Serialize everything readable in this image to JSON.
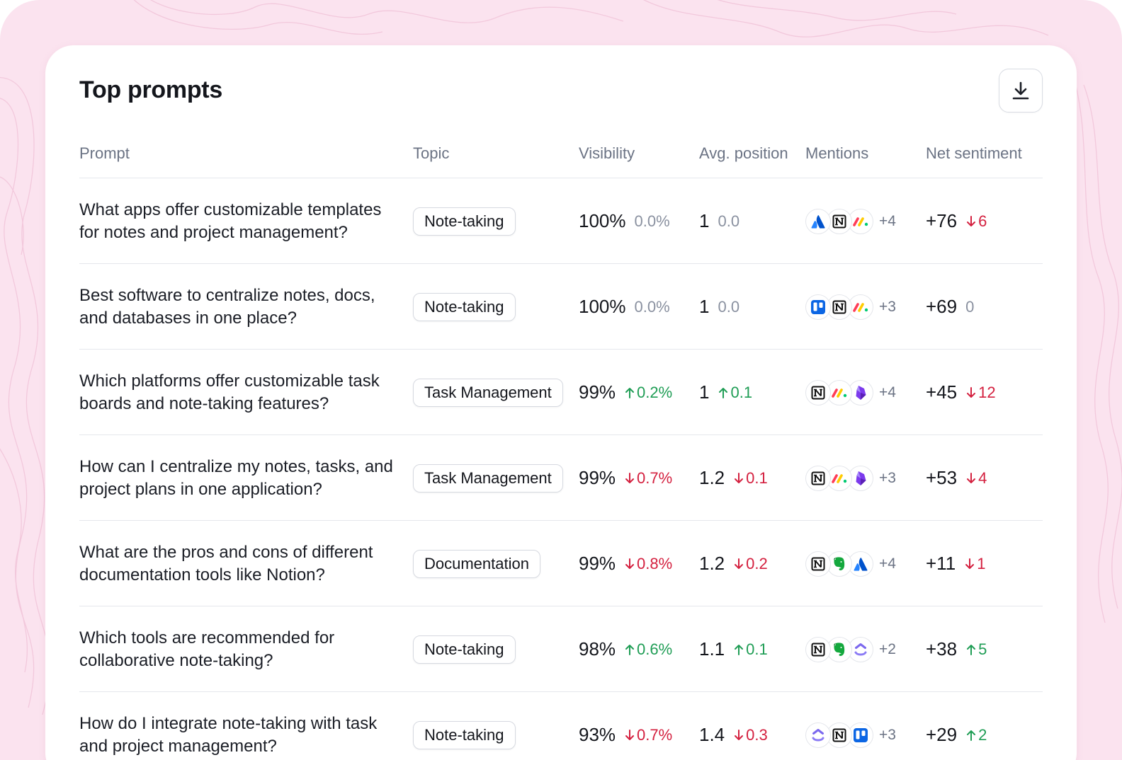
{
  "card": {
    "title": "Top prompts"
  },
  "columns": {
    "prompt": "Prompt",
    "topic": "Topic",
    "visibility": "Visibility",
    "avg_position": "Avg. position",
    "mentions": "Mentions",
    "net_sentiment": "Net sentiment"
  },
  "colors": {
    "up": "#1f9d55",
    "down": "#d4203f",
    "neutral": "#8a91a0",
    "background": "#fbe3ef"
  },
  "rows": [
    {
      "prompt": "What apps offer customizable templates for notes and project management?",
      "topic": "Note-taking",
      "visibility": "100%",
      "visibility_delta": "0.0%",
      "visibility_dir": "neutral",
      "position": "1",
      "position_delta": "0.0",
      "position_dir": "neutral",
      "mentions": [
        "atlassian-icon",
        "notion-icon",
        "monday-icon"
      ],
      "mentions_more": "+4",
      "sentiment": "+76",
      "sentiment_delta": "6",
      "sentiment_dir": "down"
    },
    {
      "prompt": "Best software to centralize notes, docs, and databases in one place?",
      "topic": "Note-taking",
      "visibility": "100%",
      "visibility_delta": "0.0%",
      "visibility_dir": "neutral",
      "position": "1",
      "position_delta": "0.0",
      "position_dir": "neutral",
      "mentions": [
        "trello-icon",
        "notion-icon",
        "monday-icon"
      ],
      "mentions_more": "+3",
      "sentiment": "+69",
      "sentiment_delta": "0",
      "sentiment_dir": "neutral"
    },
    {
      "prompt": "Which platforms offer customizable task boards and note-taking features?",
      "topic": "Task Management",
      "visibility": "99%",
      "visibility_delta": "0.2%",
      "visibility_dir": "up",
      "position": "1",
      "position_delta": "0.1",
      "position_dir": "up",
      "mentions": [
        "notion-icon",
        "monday-icon",
        "obsidian-icon"
      ],
      "mentions_more": "+4",
      "sentiment": "+45",
      "sentiment_delta": "12",
      "sentiment_dir": "down"
    },
    {
      "prompt": "How can I centralize my notes, tasks, and project plans in one application?",
      "topic": "Task Management",
      "visibility": "99%",
      "visibility_delta": "0.7%",
      "visibility_dir": "down",
      "position": "1.2",
      "position_delta": "0.1",
      "position_dir": "down",
      "mentions": [
        "notion-icon",
        "monday-icon",
        "obsidian-icon"
      ],
      "mentions_more": "+3",
      "sentiment": "+53",
      "sentiment_delta": "4",
      "sentiment_dir": "down"
    },
    {
      "prompt": "What are the pros and cons of different documentation tools like Notion?",
      "topic": "Documentation",
      "visibility": "99%",
      "visibility_delta": "0.8%",
      "visibility_dir": "down",
      "position": "1.2",
      "position_delta": "0.2",
      "position_dir": "down",
      "mentions": [
        "notion-icon",
        "evernote-icon",
        "atlassian-icon"
      ],
      "mentions_more": "+4",
      "sentiment": "+11",
      "sentiment_delta": "1",
      "sentiment_dir": "down"
    },
    {
      "prompt": "Which tools are recommended for collaborative note-taking?",
      "topic": "Note-taking",
      "visibility": "98%",
      "visibility_delta": "0.6%",
      "visibility_dir": "up",
      "position": "1.1",
      "position_delta": "0.1",
      "position_dir": "up",
      "mentions": [
        "notion-icon",
        "evernote-icon",
        "clickup-icon"
      ],
      "mentions_more": "+2",
      "sentiment": "+38",
      "sentiment_delta": "5",
      "sentiment_dir": "up"
    },
    {
      "prompt": "How do I integrate note-taking with task and project management?",
      "topic": "Note-taking",
      "visibility": "93%",
      "visibility_delta": "0.7%",
      "visibility_dir": "down",
      "position": "1.4",
      "position_delta": "0.3",
      "position_dir": "down",
      "mentions": [
        "clickup-icon",
        "notion-icon",
        "trello-icon"
      ],
      "mentions_more": "+3",
      "sentiment": "+29",
      "sentiment_delta": "2",
      "sentiment_dir": "up"
    }
  ]
}
